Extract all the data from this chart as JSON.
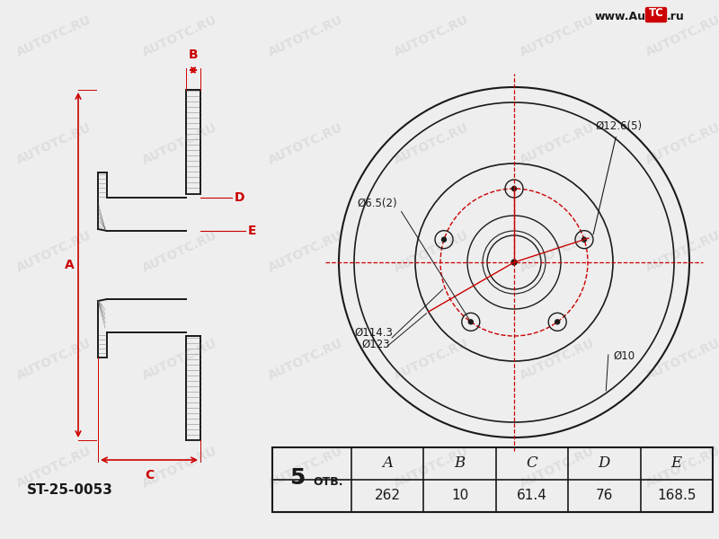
{
  "bg_color": "#eeeeee",
  "line_color": "#1a1a1a",
  "red_color": "#cc0000",
  "part_number": "ST-25-0053",
  "watermark": "AUTOTC.RU",
  "table": {
    "headers": [
      "A",
      "B",
      "C",
      "D",
      "E"
    ],
    "values": [
      "262",
      "10",
      "61.4",
      "76",
      "168.5"
    ],
    "otv_label": "5 ОТВ."
  }
}
